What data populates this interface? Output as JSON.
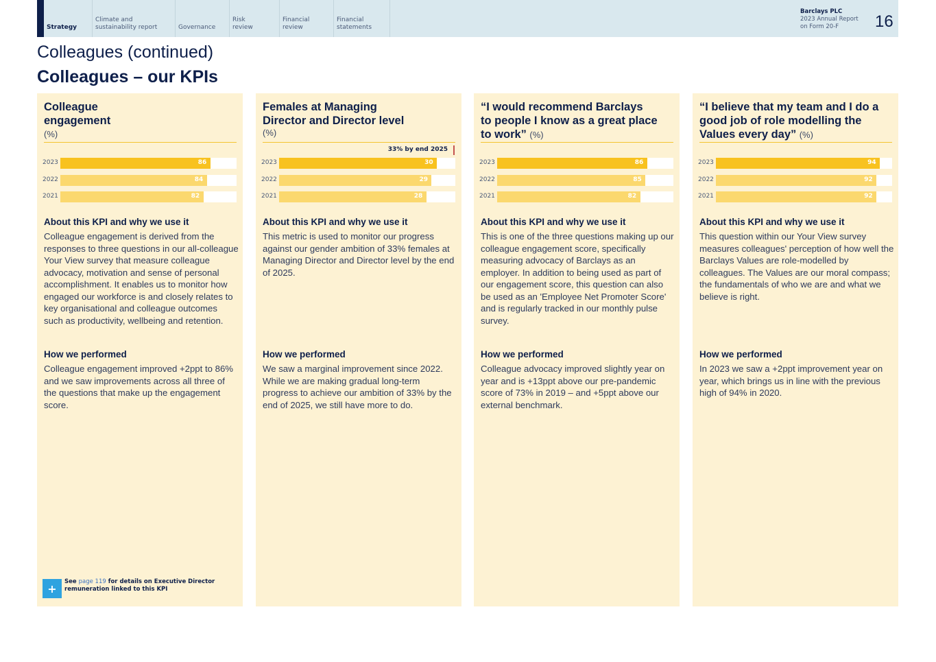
{
  "nav": {
    "items": [
      {
        "label": "Strategy",
        "active": true
      },
      {
        "label": "Climate and\nsustainability report",
        "active": false
      },
      {
        "label": "Governance",
        "active": false
      },
      {
        "label": "Risk\nreview",
        "active": false
      },
      {
        "label": "Financial\nreview",
        "active": false
      },
      {
        "label": "Financial\nstatements",
        "active": false
      }
    ],
    "brand": {
      "company": "Barclays PLC",
      "line2": "2023 Annual Report",
      "line3": "on Form 20-F"
    },
    "page_number": "16"
  },
  "header": {
    "subtitle": "Colleagues (continued)",
    "title": "Colleagues – our KPIs"
  },
  "colors": {
    "bar_current": "#f8c21f",
    "bar_prior": "#fbd86e",
    "card_bg": "#fdf2d3",
    "navy": "#0e1f4a"
  },
  "cards": [
    {
      "title": "Colleague\nengagement",
      "unit": "(%)",
      "target": "",
      "bars": [
        {
          "year": "2023",
          "value": 86
        },
        {
          "year": "2022",
          "value": 84
        },
        {
          "year": "2021",
          "value": 82
        }
      ],
      "about_h": "About this KPI and why we use it",
      "about_p": "Colleague engagement is derived from the responses to three questions in our all-colleague Your View survey that measure colleague advocacy, motivation and sense of personal accomplishment. It enables us to monitor how engaged our workforce is and closely relates to key organisational and colleague outcomes such as productivity, wellbeing and retention.",
      "perf_h": "How we performed",
      "perf_p": "Colleague engagement improved +2ppt to 86% and we saw improvements across all three of the questions that make up the engagement score.",
      "see": {
        "prefix": "See",
        "page": "page 119",
        "suffix": "for details on Executive Director remuneration linked to this KPI"
      }
    },
    {
      "title": "Females at Managing\nDirector and Director level",
      "unit": "(%)",
      "target": "33% by end 2025",
      "bars": [
        {
          "year": "2023",
          "value": 30
        },
        {
          "year": "2022",
          "value": 29
        },
        {
          "year": "2021",
          "value": 28
        }
      ],
      "about_h": "About this KPI and why we use it",
      "about_p": "This metric is used to monitor our progress against our gender ambition of 33% females at Managing Director and Director level by the end of 2025.",
      "perf_h": "How we performed",
      "perf_p": "We saw a marginal improvement since 2022. While we are making gradual long-term progress to achieve our ambition of 33% by the end of 2025, we still have more to do."
    },
    {
      "title": "“I would recommend Barclays\nto people I know as a great place\nto work”",
      "unit": "(%)",
      "target": "",
      "bars": [
        {
          "year": "2023",
          "value": 86
        },
        {
          "year": "2022",
          "value": 85
        },
        {
          "year": "2021",
          "value": 82
        }
      ],
      "about_h": "About this KPI and why we use it",
      "about_p": "This is one of the three questions making up our colleague engagement score, specifically measuring advocacy of Barclays as an employer. In addition to being used as part of our engagement score, this question can also be used as an 'Employee Net Promoter Score' and is regularly tracked in our monthly pulse survey.",
      "perf_h": "How we performed",
      "perf_p": "Colleague advocacy improved slightly year on year and is +13ppt above our pre-pandemic score of 73% in 2019 – and +5ppt above our external benchmark."
    },
    {
      "title": "“I believe that my team and I do a\ngood job of role modelling the\nValues every day”",
      "unit": "(%)",
      "target": "",
      "bars": [
        {
          "year": "2023",
          "value": 94
        },
        {
          "year": "2022",
          "value": 92
        },
        {
          "year": "2021",
          "value": 92
        }
      ],
      "about_h": "About this KPI and why we use it",
      "about_p": "This question within our Your View survey measures colleagues' perception of how well the Barclays Values are role-modelled by colleagues. The Values are our moral compass; the fundamentals of who we are and what we believe is right.",
      "perf_h": "How we performed",
      "perf_p": "In 2023 we saw a +2ppt improvement year on year, which brings us in line with the previous high of 94% in 2020."
    }
  ]
}
